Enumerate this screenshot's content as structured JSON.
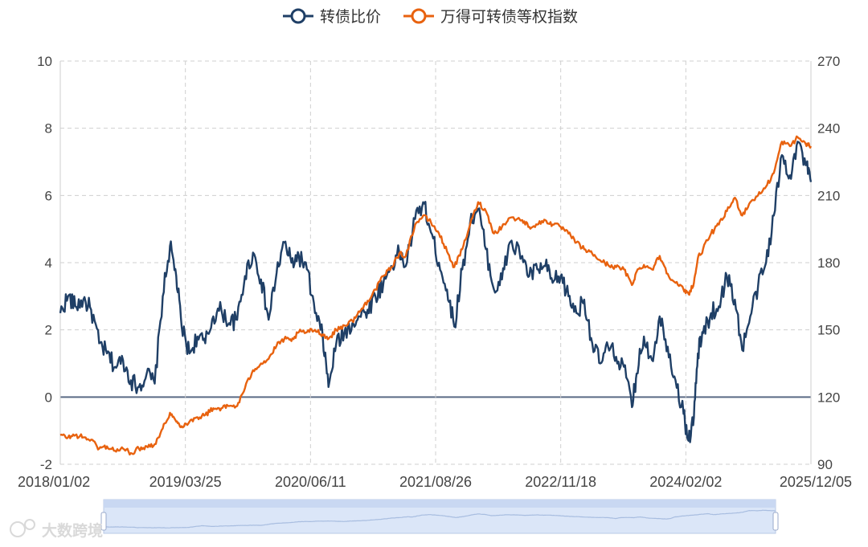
{
  "colors": {
    "series_price": "#1f3f66",
    "series_index": "#e8620f",
    "grid": "#cfcfcf",
    "zero_line": "#5a6a85",
    "slider_fill": "#dbe6f8",
    "slider_border": "#b9c9e6"
  },
  "watermark": "大数跨境",
  "chart_data": {
    "type": "line",
    "x_ticks": [
      "2018/01/02",
      "2019/03/25",
      "2020/06/11",
      "2021/08/26",
      "2022/11/18",
      "2024/02/02",
      "2025/12/05"
    ],
    "xlim": [
      "2018-01-02",
      "2025-12-05"
    ],
    "y_left": {
      "ticks": [
        "10",
        "8",
        "6",
        "4",
        "2",
        "0",
        "-2"
      ],
      "range": [
        -2,
        10
      ]
    },
    "y_right": {
      "ticks": [
        "270",
        "240",
        "210",
        "180",
        "150",
        "120",
        "90"
      ],
      "range": [
        90,
        270
      ]
    },
    "grid": true,
    "legend_position": "top-center",
    "data_zoom": true,
    "series": [
      {
        "name": "转债比价",
        "axis": "left",
        "color": "#1f3f66",
        "points": [
          [
            "2018-01-02",
            2.5
          ],
          [
            "2018-02-01",
            3.0
          ],
          [
            "2018-03-01",
            2.7
          ],
          [
            "2018-04-01",
            2.9
          ],
          [
            "2018-05-01",
            2.6
          ],
          [
            "2018-06-01",
            1.6
          ],
          [
            "2018-07-01",
            1.3
          ],
          [
            "2018-08-01",
            0.9
          ],
          [
            "2018-09-01",
            1.1
          ],
          [
            "2018-10-01",
            0.5
          ],
          [
            "2018-11-01",
            0.3
          ],
          [
            "2018-12-01",
            0.7
          ],
          [
            "2019-01-01",
            0.4
          ],
          [
            "2019-02-01",
            3.0
          ],
          [
            "2019-03-01",
            4.5
          ],
          [
            "2019-03-25",
            3.6
          ],
          [
            "2019-04-15",
            2.1
          ],
          [
            "2019-05-15",
            1.3
          ],
          [
            "2019-06-15",
            1.8
          ],
          [
            "2019-07-15",
            1.6
          ],
          [
            "2019-08-15",
            2.4
          ],
          [
            "2019-09-15",
            2.6
          ],
          [
            "2019-10-15",
            2.2
          ],
          [
            "2019-11-15",
            2.3
          ],
          [
            "2019-12-15",
            3.6
          ],
          [
            "2020-01-15",
            4.3
          ],
          [
            "2020-02-15",
            3.5
          ],
          [
            "2020-03-15",
            2.3
          ],
          [
            "2020-04-15",
            3.7
          ],
          [
            "2020-05-15",
            4.6
          ],
          [
            "2020-06-11",
            4.0
          ],
          [
            "2020-07-10",
            4.2
          ],
          [
            "2020-08-10",
            3.8
          ],
          [
            "2020-09-10",
            2.5
          ],
          [
            "2020-10-10",
            1.8
          ],
          [
            "2020-11-01",
            0.3
          ],
          [
            "2020-12-01",
            1.6
          ],
          [
            "2021-01-01",
            1.9
          ],
          [
            "2021-02-01",
            2.2
          ],
          [
            "2021-03-01",
            2.4
          ],
          [
            "2021-04-01",
            2.6
          ],
          [
            "2021-05-01",
            3.0
          ],
          [
            "2021-06-01",
            3.4
          ],
          [
            "2021-07-01",
            3.9
          ],
          [
            "2021-08-01",
            4.3
          ],
          [
            "2021-08-26",
            3.9
          ],
          [
            "2021-10-01",
            5.3
          ],
          [
            "2021-11-01",
            5.8
          ],
          [
            "2021-12-01",
            4.9
          ],
          [
            "2022-01-01",
            4.0
          ],
          [
            "2022-02-01",
            3.2
          ],
          [
            "2022-03-01",
            2.1
          ],
          [
            "2022-04-01",
            3.8
          ],
          [
            "2022-05-01",
            5.2
          ],
          [
            "2022-06-01",
            5.6
          ],
          [
            "2022-07-01",
            4.4
          ],
          [
            "2022-08-01",
            3.2
          ],
          [
            "2022-09-01",
            3.5
          ],
          [
            "2022-10-01",
            4.6
          ],
          [
            "2022-11-18",
            4.2
          ],
          [
            "2022-12-15",
            3.6
          ],
          [
            "2023-01-15",
            3.8
          ],
          [
            "2023-02-15",
            3.9
          ],
          [
            "2023-03-15",
            3.4
          ],
          [
            "2023-04-15",
            3.6
          ],
          [
            "2023-05-15",
            3.0
          ],
          [
            "2023-06-15",
            2.5
          ],
          [
            "2023-07-15",
            2.9
          ],
          [
            "2023-08-15",
            1.6
          ],
          [
            "2023-09-15",
            1.0
          ],
          [
            "2023-10-15",
            1.5
          ],
          [
            "2023-11-15",
            1.2
          ],
          [
            "2023-12-15",
            0.9
          ],
          [
            "2024-01-15",
            -0.3
          ],
          [
            "2024-02-02",
            0.7
          ],
          [
            "2024-03-01",
            1.8
          ],
          [
            "2024-04-01",
            1.1
          ],
          [
            "2024-05-01",
            2.4
          ],
          [
            "2024-06-01",
            1.5
          ],
          [
            "2024-07-01",
            0.5
          ],
          [
            "2024-08-01",
            -0.5
          ],
          [
            "2024-08-20",
            -1.3
          ],
          [
            "2024-09-10",
            -0.6
          ],
          [
            "2024-09-25",
            1.3
          ],
          [
            "2024-10-15",
            1.9
          ],
          [
            "2024-11-15",
            2.5
          ],
          [
            "2024-12-15",
            2.7
          ],
          [
            "2025-01-15",
            3.6
          ],
          [
            "2025-02-15",
            2.9
          ],
          [
            "2025-03-15",
            1.4
          ],
          [
            "2025-04-15",
            2.4
          ],
          [
            "2025-05-15",
            3.3
          ],
          [
            "2025-06-15",
            4.0
          ],
          [
            "2025-07-15",
            5.4
          ],
          [
            "2025-08-15",
            7.2
          ],
          [
            "2025-09-15",
            6.6
          ],
          [
            "2025-10-15",
            7.6
          ],
          [
            "2025-11-15",
            6.9
          ],
          [
            "2025-12-05",
            6.4
          ]
        ]
      },
      {
        "name": "万得可转债等权指数",
        "axis": "right",
        "color": "#e8620f",
        "points": [
          [
            "2018-01-02",
            103
          ],
          [
            "2018-02-01",
            102
          ],
          [
            "2018-03-01",
            103
          ],
          [
            "2018-04-01",
            102
          ],
          [
            "2018-05-01",
            101
          ],
          [
            "2018-06-01",
            97
          ],
          [
            "2018-07-01",
            98
          ],
          [
            "2018-08-01",
            96
          ],
          [
            "2018-09-01",
            97
          ],
          [
            "2018-10-01",
            95
          ],
          [
            "2018-11-01",
            97
          ],
          [
            "2018-12-01",
            98
          ],
          [
            "2019-01-01",
            99
          ],
          [
            "2019-02-01",
            106
          ],
          [
            "2019-03-01",
            113
          ],
          [
            "2019-03-25",
            109
          ],
          [
            "2019-04-15",
            107
          ],
          [
            "2019-05-15",
            109
          ],
          [
            "2019-06-15",
            111
          ],
          [
            "2019-07-15",
            112
          ],
          [
            "2019-08-15",
            115
          ],
          [
            "2019-09-15",
            115
          ],
          [
            "2019-10-15",
            116
          ],
          [
            "2019-11-15",
            116
          ],
          [
            "2019-12-15",
            124
          ],
          [
            "2020-01-15",
            132
          ],
          [
            "2020-02-15",
            135
          ],
          [
            "2020-03-15",
            137
          ],
          [
            "2020-04-15",
            143
          ],
          [
            "2020-05-15",
            146
          ],
          [
            "2020-06-11",
            145
          ],
          [
            "2020-07-10",
            149
          ],
          [
            "2020-08-10",
            149
          ],
          [
            "2020-09-10",
            150
          ],
          [
            "2020-10-10",
            148
          ],
          [
            "2020-11-01",
            146
          ],
          [
            "2020-12-01",
            150
          ],
          [
            "2021-01-01",
            152
          ],
          [
            "2021-02-01",
            154
          ],
          [
            "2021-03-01",
            158
          ],
          [
            "2021-04-01",
            163
          ],
          [
            "2021-05-01",
            168
          ],
          [
            "2021-06-01",
            174
          ],
          [
            "2021-07-01",
            178
          ],
          [
            "2021-08-01",
            184
          ],
          [
            "2021-08-26",
            183
          ],
          [
            "2021-10-01",
            197
          ],
          [
            "2021-11-01",
            201
          ],
          [
            "2021-12-01",
            198
          ],
          [
            "2022-01-01",
            193
          ],
          [
            "2022-02-01",
            185
          ],
          [
            "2022-03-01",
            178
          ],
          [
            "2022-04-01",
            186
          ],
          [
            "2022-05-01",
            197
          ],
          [
            "2022-06-01",
            207
          ],
          [
            "2022-07-01",
            203
          ],
          [
            "2022-08-01",
            193
          ],
          [
            "2022-09-01",
            196
          ],
          [
            "2022-10-01",
            200
          ],
          [
            "2022-11-18",
            199
          ],
          [
            "2022-12-15",
            196
          ],
          [
            "2023-01-15",
            197
          ],
          [
            "2023-02-15",
            199
          ],
          [
            "2023-03-15",
            197
          ],
          [
            "2023-04-15",
            196
          ],
          [
            "2023-05-15",
            193
          ],
          [
            "2023-06-15",
            189
          ],
          [
            "2023-07-15",
            186
          ],
          [
            "2023-08-15",
            184
          ],
          [
            "2023-09-15",
            181
          ],
          [
            "2023-10-15",
            179
          ],
          [
            "2023-11-15",
            178
          ],
          [
            "2023-12-15",
            177
          ],
          [
            "2024-01-15",
            170
          ],
          [
            "2024-02-02",
            176
          ],
          [
            "2024-03-01",
            179
          ],
          [
            "2024-04-01",
            177
          ],
          [
            "2024-05-01",
            183
          ],
          [
            "2024-06-01",
            175
          ],
          [
            "2024-07-01",
            171
          ],
          [
            "2024-08-01",
            168
          ],
          [
            "2024-08-20",
            166
          ],
          [
            "2024-09-10",
            171
          ],
          [
            "2024-09-25",
            182
          ],
          [
            "2024-10-15",
            186
          ],
          [
            "2024-11-15",
            193
          ],
          [
            "2024-12-15",
            197
          ],
          [
            "2025-01-15",
            203
          ],
          [
            "2025-02-15",
            209
          ],
          [
            "2025-03-15",
            201
          ],
          [
            "2025-04-15",
            207
          ],
          [
            "2025-05-15",
            210
          ],
          [
            "2025-06-15",
            214
          ],
          [
            "2025-07-15",
            220
          ],
          [
            "2025-08-15",
            234
          ],
          [
            "2025-09-15",
            232
          ],
          [
            "2025-10-15",
            236
          ],
          [
            "2025-11-15",
            233
          ],
          [
            "2025-12-05",
            232
          ]
        ]
      }
    ]
  }
}
